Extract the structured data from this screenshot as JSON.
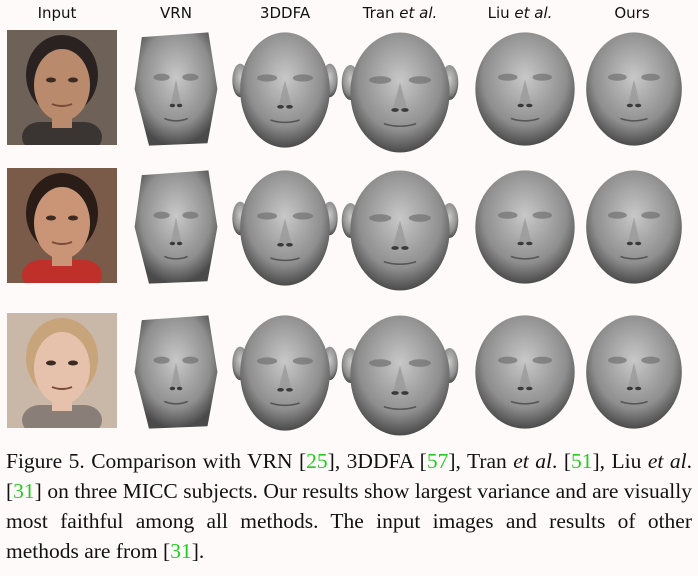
{
  "figure": {
    "columns": [
      "Input",
      "VRN",
      "3DDFA",
      "Tran",
      "Liu",
      "Ours"
    ],
    "et_al": "et al.",
    "rows": [
      {
        "subject": "subject-1",
        "photo_bg": "#6e6258",
        "skin": "#b98a6c",
        "hair": "#2a2220",
        "shirt": "#3a3432"
      },
      {
        "subject": "subject-2",
        "photo_bg": "#7a5a48",
        "skin": "#c99576",
        "hair": "#2a1c16",
        "shirt": "#c0302a"
      },
      {
        "subject": "subject-3",
        "photo_bg": "#c9b8a8",
        "skin": "#e6c2ac",
        "hair": "#c7a47a",
        "shirt": "#8a7f78"
      }
    ]
  },
  "caption": {
    "t1": "Figure 5. Comparison with VRN [",
    "r1": "25",
    "t2": "], 3DDFA [",
    "r2": "57",
    "t3": "], Tran ",
    "i1": "et al",
    "t4": ". [",
    "r3": "51",
    "t5": "], Liu ",
    "i2": "et al",
    "t6": ". [",
    "r4": "31",
    "t7": "] on three MICC subjects. Our results show largest variance and are visually most faithful among all methods. The input images and results of other methods are from [",
    "r5": "31",
    "t8": "].",
    "ref_color": "#22cc22"
  }
}
